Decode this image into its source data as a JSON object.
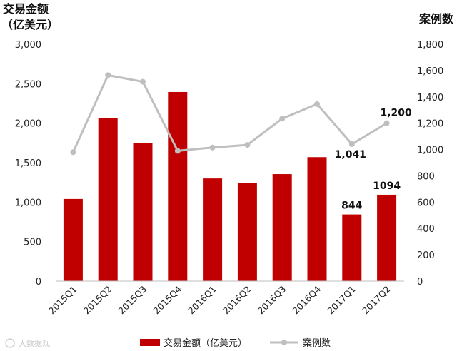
{
  "chart_data": {
    "type": "bar",
    "categories": [
      "2015Q1",
      "2015Q2",
      "2015Q3",
      "2015Q4",
      "2016Q1",
      "2016Q2",
      "2016Q3",
      "2016Q4",
      "2017Q1",
      "2017Q2"
    ],
    "series": [
      {
        "name": "交易金额（亿美元）",
        "type": "bar",
        "axis": "left",
        "color": "#c00000",
        "values": [
          1040,
          2065,
          1745,
          2395,
          1300,
          1245,
          1355,
          1570,
          844,
          1094
        ]
      },
      {
        "name": "案例数",
        "type": "line",
        "axis": "right",
        "color": "#bfbfbf",
        "values": [
          980,
          1565,
          1515,
          990,
          1015,
          1035,
          1235,
          1345,
          1041,
          1200
        ]
      }
    ],
    "left_axis_title": [
      "交易金额",
      "（亿美元）"
    ],
    "right_axis_title": "案例数",
    "left_ticks": [
      "0",
      "500",
      "1,000",
      "1,500",
      "2,000",
      "2,500",
      "3,000"
    ],
    "right_ticks": [
      "0",
      "200",
      "400",
      "600",
      "800",
      "1,000",
      "1,200",
      "1,400",
      "1,600",
      "1,800"
    ],
    "ylim_left": [
      0,
      3000
    ],
    "ylim_right": [
      0,
      1800
    ],
    "data_labels": [
      {
        "series": 0,
        "index": 8,
        "text": "844"
      },
      {
        "series": 0,
        "index": 9,
        "text": "1094"
      },
      {
        "series": 1,
        "index": 8,
        "text": "1,041"
      },
      {
        "series": 1,
        "index": 9,
        "text": "1,200"
      }
    ],
    "legend_position": "bottom",
    "grid": false
  },
  "watermark": "大数据观"
}
